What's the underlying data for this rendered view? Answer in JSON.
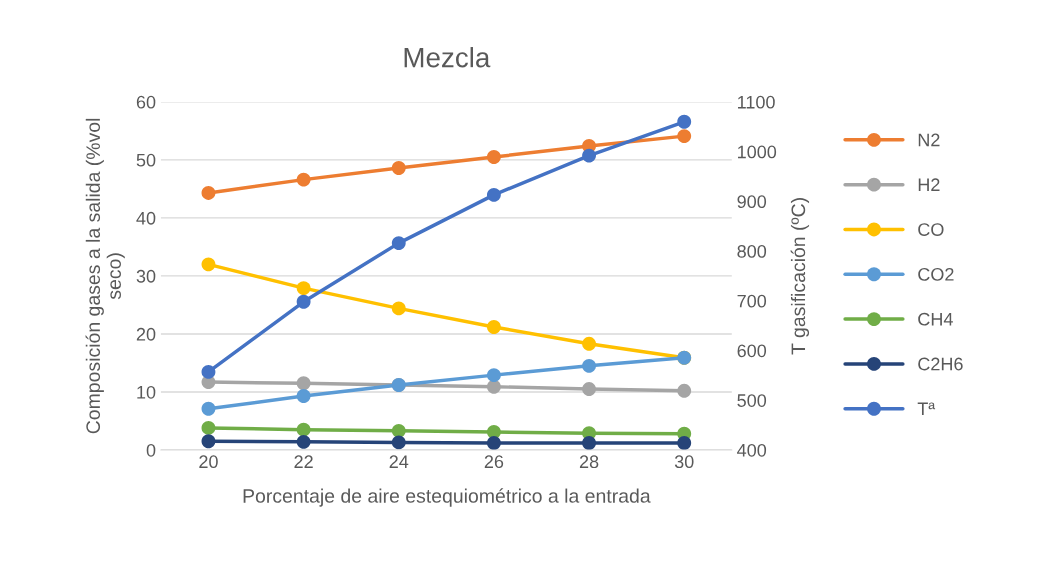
{
  "chart_data": {
    "type": "line",
    "title": "Mezcla",
    "xlabel": "Porcentaje de aire estequiométrico a la entrada",
    "ylabel": "Composición gases a la salida (%vol\nseco)",
    "y2label": "T gasificación (ºC)",
    "x": [
      20,
      22,
      24,
      26,
      28,
      30
    ],
    "xlim": [
      19,
      31
    ],
    "xticks": [
      20,
      22,
      24,
      26,
      28,
      30
    ],
    "ylim": [
      0,
      60
    ],
    "yticks": [
      0,
      10,
      20,
      30,
      40,
      50,
      60
    ],
    "y2lim": [
      400,
      1100
    ],
    "y2ticks": [
      400,
      500,
      600,
      700,
      800,
      900,
      1000,
      1100
    ],
    "grid": "y",
    "legend": "right",
    "marker": "circle",
    "line_style": "solid",
    "series": [
      {
        "name": "N2",
        "color": "#ed7d31",
        "values": [
          44.3,
          46.6,
          48.6,
          50.5,
          52.4,
          54.1
        ]
      },
      {
        "name": "H2",
        "color": "#a5a5a5",
        "values": [
          11.7,
          11.5,
          11.2,
          10.9,
          10.5,
          10.2
        ]
      },
      {
        "name": "CO",
        "color": "#ffc000",
        "values": [
          32.0,
          27.9,
          24.4,
          21.2,
          18.3,
          15.9
        ]
      },
      {
        "name": "CO2",
        "color": "#5b9bd5",
        "values": [
          7.1,
          9.3,
          11.2,
          12.9,
          14.5,
          15.9
        ]
      },
      {
        "name": "CH4",
        "color": "#70ad47",
        "values": [
          3.8,
          3.5,
          3.3,
          3.1,
          2.9,
          2.8
        ]
      },
      {
        "name": "C2H6",
        "color": "#264478",
        "values": [
          1.5,
          1.4,
          1.3,
          1.2,
          1.2,
          1.2
        ]
      },
      {
        "name": "Tª",
        "color": "#4472c4",
        "axis": "y2",
        "values": [
          557,
          698,
          816,
          913,
          992,
          1060
        ]
      }
    ]
  }
}
